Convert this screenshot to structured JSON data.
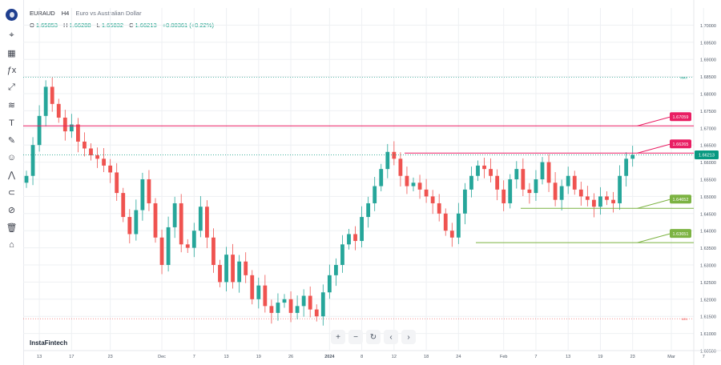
{
  "header": {
    "symbol": "EURAUD",
    "timeframe": "H4",
    "description": "Euro vs Australian Dollar",
    "open_label": "O",
    "open": "1.65853",
    "high_label": "H",
    "high": "1.66288",
    "low_label": "L",
    "low": "1.65832",
    "close_label": "C",
    "close": "1.66213",
    "change": "+0.00361 (+0.22%)"
  },
  "toolbar": {
    "icons": [
      "logo-icon",
      "cursor-icon",
      "measure-icon",
      "fx-icon",
      "trendline-icon",
      "fib-icon",
      "text-icon",
      "brush-icon",
      "emoji-icon",
      "pattern-icon",
      "magnet-icon",
      "eye-off-icon",
      "trash-icon",
      "home-icon"
    ],
    "glyphs": [
      "",
      "⌖",
      "▦",
      "ƒx",
      "⤢",
      "≋",
      "T",
      "✎",
      "☺",
      "⋀",
      "⊂",
      "⊘",
      "🗑",
      "⌂"
    ]
  },
  "navigation": {
    "zoom_in": "+",
    "zoom_out": "−",
    "reset": "↻",
    "back": "‹",
    "forward": "›"
  },
  "watermark": "InstaFintech",
  "colors": {
    "up": "#26a69a",
    "down": "#ef5350",
    "resistance": "#e91e63",
    "support": "#7cb342",
    "price": "#089981",
    "grid": "#eef0f3"
  },
  "chart_data": {
    "type": "candlestick",
    "title": "EURAUD H4",
    "ylim": [
      1.605,
      1.705
    ],
    "y_ticks": [
      "1.70000",
      "1.69500",
      "1.69000",
      "1.68500",
      "1.68000",
      "1.67500",
      "1.67000",
      "1.66500",
      "1.66000",
      "1.65500",
      "1.65000",
      "1.64500",
      "1.64000",
      "1.63500",
      "1.63000",
      "1.62500",
      "1.62000",
      "1.61500",
      "1.61000",
      "1.60500"
    ],
    "x_ticks": [
      {
        "label": "13",
        "i": 2
      },
      {
        "label": "17",
        "i": 7
      },
      {
        "label": "23",
        "i": 13
      },
      {
        "label": "Dec",
        "i": 21
      },
      {
        "label": "7",
        "i": 26
      },
      {
        "label": "13",
        "i": 31
      },
      {
        "label": "19",
        "i": 36
      },
      {
        "label": "26",
        "i": 41
      },
      {
        "label": "2024",
        "i": 47
      },
      {
        "label": "8",
        "i": 52
      },
      {
        "label": "12",
        "i": 57
      },
      {
        "label": "18",
        "i": 62
      },
      {
        "label": "24",
        "i": 67
      },
      {
        "label": "Feb",
        "i": 74
      },
      {
        "label": "7",
        "i": 79
      },
      {
        "label": "13",
        "i": 84
      },
      {
        "label": "19",
        "i": 89
      },
      {
        "label": "23",
        "i": 94
      },
      {
        "label": "Mar",
        "i": 100
      },
      {
        "label": "7",
        "i": 105
      }
    ],
    "close_series": [
      1.656,
      1.665,
      1.6735,
      1.682,
      1.677,
      1.673,
      1.669,
      1.671,
      1.666,
      1.664,
      1.662,
      1.661,
      1.659,
      1.657,
      1.651,
      1.644,
      1.639,
      1.646,
      1.655,
      1.648,
      1.638,
      1.63,
      1.641,
      1.648,
      1.636,
      1.635,
      1.64,
      1.647,
      1.638,
      1.63,
      1.625,
      1.633,
      1.625,
      1.631,
      1.627,
      1.62,
      1.624,
      1.618,
      1.616,
      1.619,
      1.62,
      1.616,
      1.618,
      1.621,
      1.617,
      1.615,
      1.622,
      1.627,
      1.63,
      1.636,
      1.639,
      1.637,
      1.644,
      1.648,
      1.653,
      1.658,
      1.663,
      1.661,
      1.656,
      1.653,
      1.654,
      1.652,
      1.65,
      1.648,
      1.645,
      1.64,
      1.638,
      1.645,
      1.652,
      1.656,
      1.659,
      1.658,
      1.656,
      1.652,
      1.648,
      1.655,
      1.658,
      1.652,
      1.651,
      1.655,
      1.66,
      1.654,
      1.649,
      1.653,
      1.656,
      1.652,
      1.65,
      1.649,
      1.647,
      1.65,
      1.649,
      1.648,
      1.656,
      1.661,
      1.6621
    ],
    "horizontal_levels": [
      {
        "value": 1.67059,
        "label": "1.67059",
        "color": "#e91e63"
      },
      {
        "value": 1.66265,
        "label": "1.66265",
        "color": "#e91e63"
      },
      {
        "value": 1.64652,
        "label": "1.64652",
        "color": "#7cb342"
      },
      {
        "value": 1.63651,
        "label": "1.63651",
        "color": "#7cb342"
      }
    ],
    "current_price": {
      "value": 1.66213,
      "label": "1.66213"
    },
    "max_label": "MAX",
    "min_label": "MIN"
  }
}
